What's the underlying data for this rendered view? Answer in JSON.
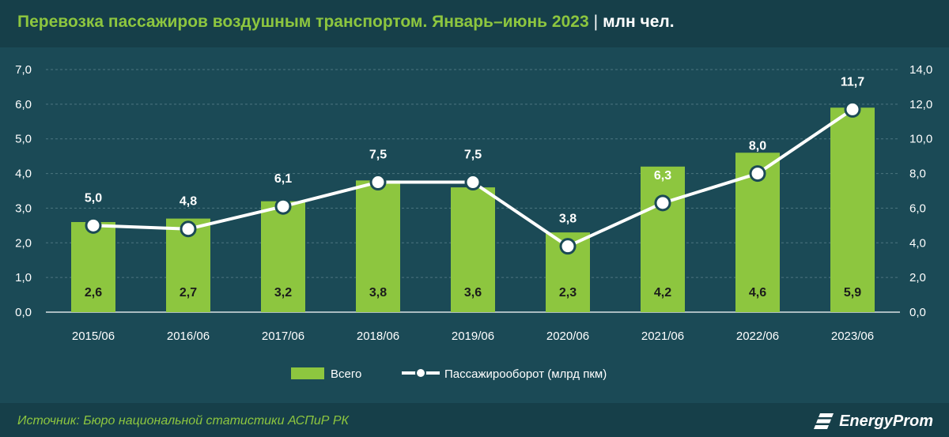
{
  "header": {
    "title": "Перевозка пассажиров воздушным транспортом. Январь–июнь 2023",
    "separator": "|",
    "unit": "млн чел."
  },
  "footer": {
    "source": "Источник: Бюро национальной статистики АСПиР РК",
    "logo_text": "EnergyProm"
  },
  "colors": {
    "background": "#1b4a56",
    "bar": "#8dc63f",
    "line": "#ffffff",
    "title": "#8dc63f"
  },
  "chart_data": {
    "type": "bar",
    "categories": [
      "2015/06",
      "2016/06",
      "2017/06",
      "2018/06",
      "2019/06",
      "2020/06",
      "2021/06",
      "2022/06",
      "2023/06"
    ],
    "series": [
      {
        "name": "Всего",
        "type": "bar",
        "axis": "left",
        "values": [
          2.6,
          2.7,
          3.2,
          3.8,
          3.6,
          2.3,
          4.2,
          4.6,
          5.9
        ],
        "labels": [
          "2,6",
          "2,7",
          "3,2",
          "3,8",
          "3,6",
          "2,3",
          "4,2",
          "4,6",
          "5,9"
        ]
      },
      {
        "name": "Пассажирооборот (млрд пкм)",
        "type": "line",
        "axis": "right",
        "values": [
          5.0,
          4.8,
          6.1,
          7.5,
          7.5,
          3.8,
          6.3,
          8.0,
          11.7
        ],
        "labels": [
          "5,0",
          "4,8",
          "6,1",
          "7,5",
          "7,5",
          "3,8",
          "6,3",
          "8,0",
          "11,7"
        ]
      }
    ],
    "y_left": {
      "ylim": [
        0,
        7
      ],
      "ticks": [
        "0,0",
        "1,0",
        "2,0",
        "3,0",
        "4,0",
        "5,0",
        "6,0",
        "7,0"
      ]
    },
    "y_right": {
      "ylim": [
        0,
        14
      ],
      "ticks": [
        "0,0",
        "2,0",
        "4,0",
        "6,0",
        "8,0",
        "10,0",
        "12,0",
        "14,0"
      ]
    },
    "grid": true,
    "legend": "bottom"
  }
}
